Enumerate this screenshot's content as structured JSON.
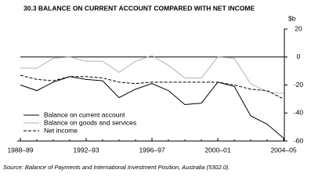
{
  "chart_data": {
    "type": "line",
    "title": "30.3 BALANCE ON CURRENT ACCOUNT COMPARED WITH NET INCOME",
    "y_label": "$b",
    "source": "Source: Balance of Payments and International Investment Position, Australia (5302.0).",
    "categories": [
      "1988–89",
      null,
      null,
      null,
      "1992–93",
      null,
      null,
      null,
      "1996–97",
      null,
      null,
      null,
      "2000–01",
      null,
      null,
      null,
      "2004–05"
    ],
    "ylim": [
      -60,
      20
    ],
    "yticks": [
      20,
      0,
      -20,
      -40,
      -60
    ],
    "series": [
      {
        "name": "Balance on current account",
        "color": "#000000",
        "dash": false,
        "values": [
          -20,
          -24,
          -18,
          -14,
          -16,
          -17,
          -29,
          -23,
          -19,
          -24,
          -34,
          -33,
          -18,
          -21,
          -42,
          -48,
          -58
        ]
      },
      {
        "name": "Balance on goods and services",
        "color": "#b3b3b3",
        "dash": false,
        "values": [
          -8,
          -8,
          -1,
          0,
          -3,
          -3,
          -11,
          -3,
          1,
          -6,
          -15,
          -15,
          0,
          -1,
          -19,
          -25,
          -26
        ]
      },
      {
        "name": "Net income",
        "color": "#000000",
        "dash": true,
        "values": [
          -13,
          -16,
          -17,
          -14,
          -14,
          -15,
          -18,
          -19,
          -18,
          -18,
          -18,
          -18,
          -18,
          -20,
          -23,
          -24,
          -30
        ]
      }
    ]
  }
}
